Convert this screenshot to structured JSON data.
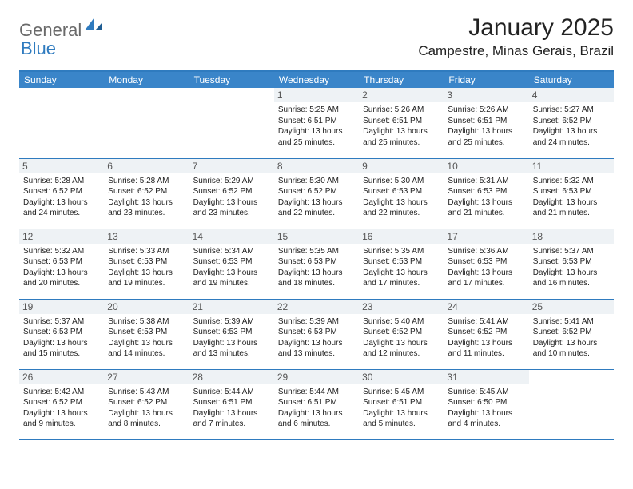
{
  "logo": {
    "textA": "General",
    "textB": "Blue"
  },
  "title": "January 2025",
  "location": "Campestre, Minas Gerais, Brazil",
  "colors": {
    "header_bg": "#3a85c9",
    "header_text": "#ffffff",
    "border": "#2f7bbf",
    "daynum_bg": "#eef2f5",
    "text": "#222222",
    "logo_gray": "#6a6a6a",
    "logo_blue": "#2f7bbf"
  },
  "weekdays": [
    "Sunday",
    "Monday",
    "Tuesday",
    "Wednesday",
    "Thursday",
    "Friday",
    "Saturday"
  ],
  "weeks": [
    [
      {
        "blank": true
      },
      {
        "blank": true
      },
      {
        "blank": true
      },
      {
        "day": "1",
        "sunrise": "Sunrise: 5:25 AM",
        "sunset": "Sunset: 6:51 PM",
        "dl1": "Daylight: 13 hours",
        "dl2": "and 25 minutes."
      },
      {
        "day": "2",
        "sunrise": "Sunrise: 5:26 AM",
        "sunset": "Sunset: 6:51 PM",
        "dl1": "Daylight: 13 hours",
        "dl2": "and 25 minutes."
      },
      {
        "day": "3",
        "sunrise": "Sunrise: 5:26 AM",
        "sunset": "Sunset: 6:51 PM",
        "dl1": "Daylight: 13 hours",
        "dl2": "and 25 minutes."
      },
      {
        "day": "4",
        "sunrise": "Sunrise: 5:27 AM",
        "sunset": "Sunset: 6:52 PM",
        "dl1": "Daylight: 13 hours",
        "dl2": "and 24 minutes."
      }
    ],
    [
      {
        "day": "5",
        "sunrise": "Sunrise: 5:28 AM",
        "sunset": "Sunset: 6:52 PM",
        "dl1": "Daylight: 13 hours",
        "dl2": "and 24 minutes."
      },
      {
        "day": "6",
        "sunrise": "Sunrise: 5:28 AM",
        "sunset": "Sunset: 6:52 PM",
        "dl1": "Daylight: 13 hours",
        "dl2": "and 23 minutes."
      },
      {
        "day": "7",
        "sunrise": "Sunrise: 5:29 AM",
        "sunset": "Sunset: 6:52 PM",
        "dl1": "Daylight: 13 hours",
        "dl2": "and 23 minutes."
      },
      {
        "day": "8",
        "sunrise": "Sunrise: 5:30 AM",
        "sunset": "Sunset: 6:52 PM",
        "dl1": "Daylight: 13 hours",
        "dl2": "and 22 minutes."
      },
      {
        "day": "9",
        "sunrise": "Sunrise: 5:30 AM",
        "sunset": "Sunset: 6:53 PM",
        "dl1": "Daylight: 13 hours",
        "dl2": "and 22 minutes."
      },
      {
        "day": "10",
        "sunrise": "Sunrise: 5:31 AM",
        "sunset": "Sunset: 6:53 PM",
        "dl1": "Daylight: 13 hours",
        "dl2": "and 21 minutes."
      },
      {
        "day": "11",
        "sunrise": "Sunrise: 5:32 AM",
        "sunset": "Sunset: 6:53 PM",
        "dl1": "Daylight: 13 hours",
        "dl2": "and 21 minutes."
      }
    ],
    [
      {
        "day": "12",
        "sunrise": "Sunrise: 5:32 AM",
        "sunset": "Sunset: 6:53 PM",
        "dl1": "Daylight: 13 hours",
        "dl2": "and 20 minutes."
      },
      {
        "day": "13",
        "sunrise": "Sunrise: 5:33 AM",
        "sunset": "Sunset: 6:53 PM",
        "dl1": "Daylight: 13 hours",
        "dl2": "and 19 minutes."
      },
      {
        "day": "14",
        "sunrise": "Sunrise: 5:34 AM",
        "sunset": "Sunset: 6:53 PM",
        "dl1": "Daylight: 13 hours",
        "dl2": "and 19 minutes."
      },
      {
        "day": "15",
        "sunrise": "Sunrise: 5:35 AM",
        "sunset": "Sunset: 6:53 PM",
        "dl1": "Daylight: 13 hours",
        "dl2": "and 18 minutes."
      },
      {
        "day": "16",
        "sunrise": "Sunrise: 5:35 AM",
        "sunset": "Sunset: 6:53 PM",
        "dl1": "Daylight: 13 hours",
        "dl2": "and 17 minutes."
      },
      {
        "day": "17",
        "sunrise": "Sunrise: 5:36 AM",
        "sunset": "Sunset: 6:53 PM",
        "dl1": "Daylight: 13 hours",
        "dl2": "and 17 minutes."
      },
      {
        "day": "18",
        "sunrise": "Sunrise: 5:37 AM",
        "sunset": "Sunset: 6:53 PM",
        "dl1": "Daylight: 13 hours",
        "dl2": "and 16 minutes."
      }
    ],
    [
      {
        "day": "19",
        "sunrise": "Sunrise: 5:37 AM",
        "sunset": "Sunset: 6:53 PM",
        "dl1": "Daylight: 13 hours",
        "dl2": "and 15 minutes."
      },
      {
        "day": "20",
        "sunrise": "Sunrise: 5:38 AM",
        "sunset": "Sunset: 6:53 PM",
        "dl1": "Daylight: 13 hours",
        "dl2": "and 14 minutes."
      },
      {
        "day": "21",
        "sunrise": "Sunrise: 5:39 AM",
        "sunset": "Sunset: 6:53 PM",
        "dl1": "Daylight: 13 hours",
        "dl2": "and 13 minutes."
      },
      {
        "day": "22",
        "sunrise": "Sunrise: 5:39 AM",
        "sunset": "Sunset: 6:53 PM",
        "dl1": "Daylight: 13 hours",
        "dl2": "and 13 minutes."
      },
      {
        "day": "23",
        "sunrise": "Sunrise: 5:40 AM",
        "sunset": "Sunset: 6:52 PM",
        "dl1": "Daylight: 13 hours",
        "dl2": "and 12 minutes."
      },
      {
        "day": "24",
        "sunrise": "Sunrise: 5:41 AM",
        "sunset": "Sunset: 6:52 PM",
        "dl1": "Daylight: 13 hours",
        "dl2": "and 11 minutes."
      },
      {
        "day": "25",
        "sunrise": "Sunrise: 5:41 AM",
        "sunset": "Sunset: 6:52 PM",
        "dl1": "Daylight: 13 hours",
        "dl2": "and 10 minutes."
      }
    ],
    [
      {
        "day": "26",
        "sunrise": "Sunrise: 5:42 AM",
        "sunset": "Sunset: 6:52 PM",
        "dl1": "Daylight: 13 hours",
        "dl2": "and 9 minutes."
      },
      {
        "day": "27",
        "sunrise": "Sunrise: 5:43 AM",
        "sunset": "Sunset: 6:52 PM",
        "dl1": "Daylight: 13 hours",
        "dl2": "and 8 minutes."
      },
      {
        "day": "28",
        "sunrise": "Sunrise: 5:44 AM",
        "sunset": "Sunset: 6:51 PM",
        "dl1": "Daylight: 13 hours",
        "dl2": "and 7 minutes."
      },
      {
        "day": "29",
        "sunrise": "Sunrise: 5:44 AM",
        "sunset": "Sunset: 6:51 PM",
        "dl1": "Daylight: 13 hours",
        "dl2": "and 6 minutes."
      },
      {
        "day": "30",
        "sunrise": "Sunrise: 5:45 AM",
        "sunset": "Sunset: 6:51 PM",
        "dl1": "Daylight: 13 hours",
        "dl2": "and 5 minutes."
      },
      {
        "day": "31",
        "sunrise": "Sunrise: 5:45 AM",
        "sunset": "Sunset: 6:50 PM",
        "dl1": "Daylight: 13 hours",
        "dl2": "and 4 minutes."
      },
      {
        "blank": true
      }
    ]
  ]
}
